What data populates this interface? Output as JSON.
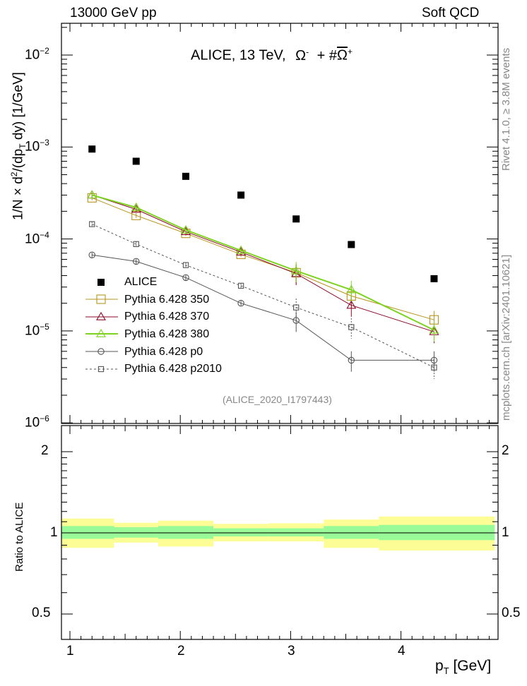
{
  "header": {
    "left": "13000 GeV pp",
    "right": "Soft QCD"
  },
  "side_labels": {
    "rivet": "Rivet 4.1.0, ≥ 3.8M events",
    "mcplots": "mcplots.cern.ch [arXiv:2401.10621]"
  },
  "plot_title": "ALICE, 13 TeV,  Ω̄  + #Ω̄",
  "plot_title_parts": {
    "text": "ALICE, 13 TeV,",
    "sym1": "Ω",
    "sup1": "-",
    "plus": "+ #",
    "sym2": "Ω",
    "sup2": "+"
  },
  "analysis_id": "(ALICE_2020_I1797443)",
  "y_label_main": "1/N × d²/(dp_T dy) [1/GeV]",
  "y_label_ratio": "Ratio to ALICE",
  "x_label": "p_T [GeV]",
  "chart_data": [
    {
      "type": "scatter",
      "title": "ALICE, 13 TeV, Omega- + Omega-bar+",
      "xlabel": "p_T [GeV]",
      "ylabel": "1/N x d2/(dp_T dy) [1/GeV]",
      "xlim": [
        0.9,
        4.9
      ],
      "ylim": [
        1e-06,
        0.02
      ],
      "yscale": "log",
      "x_ticks": [
        "1",
        "2",
        "3",
        "4"
      ],
      "y_ticks": [
        "10⁻⁶",
        "10⁻⁵",
        "10⁻⁴",
        "10⁻³",
        "10⁻²"
      ],
      "legend_position": "middle-left",
      "series": [
        {
          "name": "ALICE",
          "color": "#000000",
          "marker": "filled-square",
          "x": [
            1.2,
            1.6,
            2.05,
            2.55,
            3.05,
            3.55,
            4.3
          ],
          "y": [
            0.00095,
            0.0007,
            0.00048,
            0.0003,
            0.000165,
            8.7e-05,
            3.7e-05
          ]
        },
        {
          "name": "Pythia 6.428 350",
          "color": "#b8941e",
          "marker": "open-square",
          "x": [
            1.2,
            1.6,
            2.05,
            2.55,
            3.05,
            3.55,
            4.3
          ],
          "y": [
            0.00028,
            0.00018,
            0.000115,
            6.8e-05,
            4.3e-05,
            2.4e-05,
            1.32e-05
          ]
        },
        {
          "name": "Pythia 6.428 370",
          "color": "#8b0a2a",
          "marker": "open-triangle",
          "x": [
            1.2,
            1.6,
            2.05,
            2.55,
            3.05,
            3.55,
            4.3
          ],
          "y": [
            0.0003,
            0.00021,
            0.00012,
            7.2e-05,
            4.2e-05,
            1.9e-05,
            9.8e-06
          ]
        },
        {
          "name": "Pythia 6.428 380",
          "color": "#7ed321",
          "marker": "open-triangle",
          "x": [
            1.2,
            1.6,
            2.05,
            2.55,
            3.05,
            3.55,
            4.3
          ],
          "y": [
            0.0003,
            0.00022,
            0.000125,
            7.5e-05,
            4.5e-05,
            2.8e-05,
            1.02e-05
          ]
        },
        {
          "name": "Pythia 6.428 p0",
          "color": "#555555",
          "marker": "open-circle",
          "x": [
            1.2,
            1.6,
            2.05,
            2.55,
            3.05,
            3.55,
            4.3
          ],
          "y": [
            6.7e-05,
            5.7e-05,
            3.8e-05,
            2e-05,
            1.3e-05,
            4.8e-06,
            4.8e-06
          ]
        },
        {
          "name": "Pythia 6.428 p2010",
          "color": "#555555",
          "marker": "open-square",
          "dashed": true,
          "x": [
            1.2,
            1.6,
            2.05,
            2.55,
            3.05,
            3.55,
            4.3
          ],
          "y": [
            0.000145,
            8.8e-05,
            5.2e-05,
            3.1e-05,
            1.8e-05,
            1.1e-05,
            4e-06
          ]
        }
      ]
    },
    {
      "type": "area",
      "title": "Ratio to ALICE",
      "xlabel": "p_T [GeV]",
      "ylabel": "Ratio to ALICE",
      "xlim": [
        0.9,
        4.9
      ],
      "ylim": [
        0.4,
        2.4
      ],
      "yscale": "log",
      "y_ticks": [
        "0.5",
        "1",
        "2"
      ],
      "bins": [
        {
          "x0": 0.9,
          "x1": 1.4,
          "stat_lo": 0.95,
          "stat_hi": 1.06,
          "tot_lo": 0.88,
          "tot_hi": 1.13
        },
        {
          "x0": 1.4,
          "x1": 1.8,
          "stat_lo": 0.96,
          "stat_hi": 1.05,
          "tot_lo": 0.92,
          "tot_hi": 1.09
        },
        {
          "x0": 1.8,
          "x1": 2.3,
          "stat_lo": 0.95,
          "stat_hi": 1.06,
          "tot_lo": 0.89,
          "tot_hi": 1.11
        },
        {
          "x0": 2.3,
          "x1": 2.8,
          "stat_lo": 0.97,
          "stat_hi": 1.04,
          "tot_lo": 0.93,
          "tot_hi": 1.08
        },
        {
          "x0": 2.8,
          "x1": 3.3,
          "stat_lo": 0.97,
          "stat_hi": 1.04,
          "tot_lo": 0.93,
          "tot_hi": 1.085
        },
        {
          "x0": 3.3,
          "x1": 3.8,
          "stat_lo": 0.95,
          "stat_hi": 1.06,
          "tot_lo": 0.88,
          "tot_hi": 1.12
        },
        {
          "x0": 3.8,
          "x1": 4.85,
          "stat_lo": 0.94,
          "stat_hi": 1.07,
          "tot_lo": 0.86,
          "tot_hi": 1.15
        }
      ]
    }
  ]
}
